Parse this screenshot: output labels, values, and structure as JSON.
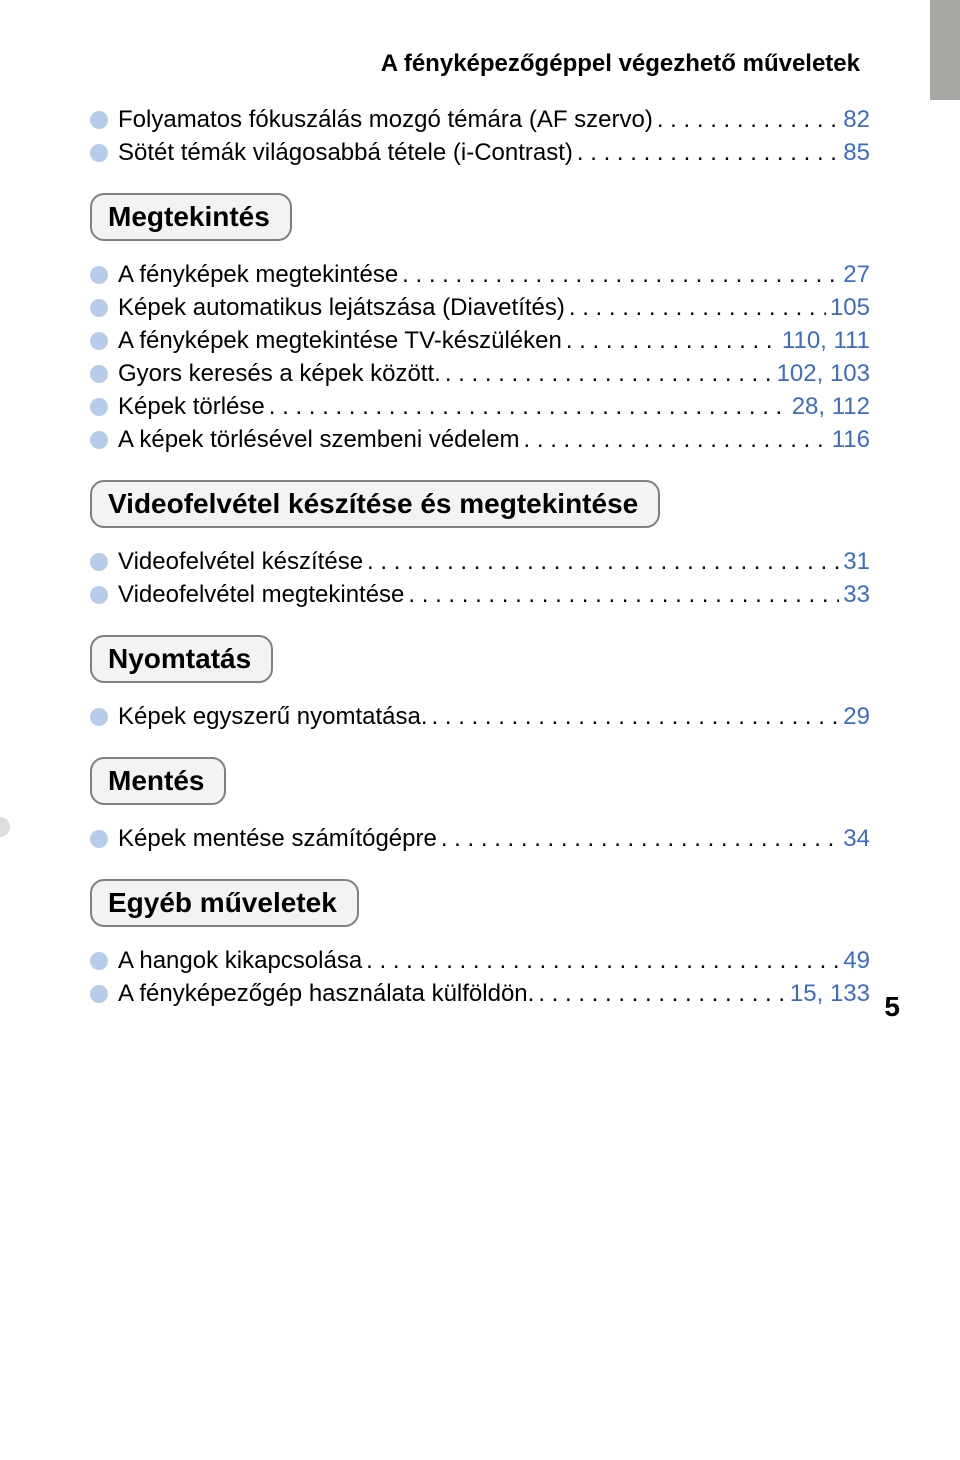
{
  "page_title": "A fényképezőgéppel végezhető műveletek",
  "page_number": "5",
  "colors": {
    "bullet": "#b6cce9",
    "link": "#3a6cc7",
    "heading_bg": "#f3f3f1",
    "heading_border": "#808080",
    "bg_icon": "#dedddb",
    "side_tab": "#a9a7a4"
  },
  "top_items": [
    {
      "label": "Folyamatos fókuszálás mozgó témára (AF szervo)",
      "page": "82"
    },
    {
      "label": "Sötét témák világosabbá tétele (i-Contrast)",
      "page": "85"
    }
  ],
  "sections": [
    {
      "heading": "Megtekintés",
      "icon": "play",
      "items": [
        {
          "label": "A fényképek megtekintése",
          "page": "27"
        },
        {
          "label": "Képek automatikus lejátszása (Diavetítés)",
          "page": "105"
        },
        {
          "label": "A fényképek megtekintése TV-készüléken",
          "page": "110, 111"
        },
        {
          "label": "Gyors keresés a képek között.",
          "page": "102, 103"
        },
        {
          "label": "Képek törlése",
          "page": "28, 112"
        },
        {
          "label": "A képek törlésével szembeni védelem",
          "page": "116"
        }
      ]
    },
    {
      "heading": "Videofelvétel készítése és megtekintése",
      "icon": "video",
      "items": [
        {
          "label": "Videofelvétel készítése",
          "page": "31"
        },
        {
          "label": "Videofelvétel megtekintése",
          "page": "33"
        }
      ]
    },
    {
      "heading": "Nyomtatás",
      "icon": "print",
      "items": [
        {
          "label": "Képek egyszerű nyomtatása.",
          "page": "29"
        }
      ]
    },
    {
      "heading": "Mentés",
      "icon": "save",
      "items": [
        {
          "label": "Képek mentése számítógépre",
          "page": "34"
        }
      ]
    },
    {
      "heading": "Egyéb műveletek",
      "icon": "tools",
      "items": [
        {
          "label": "A hangok kikapcsolása",
          "page": "49"
        },
        {
          "label": "A fényképezőgép használata külföldön.",
          "page": "15, 133"
        }
      ]
    }
  ]
}
